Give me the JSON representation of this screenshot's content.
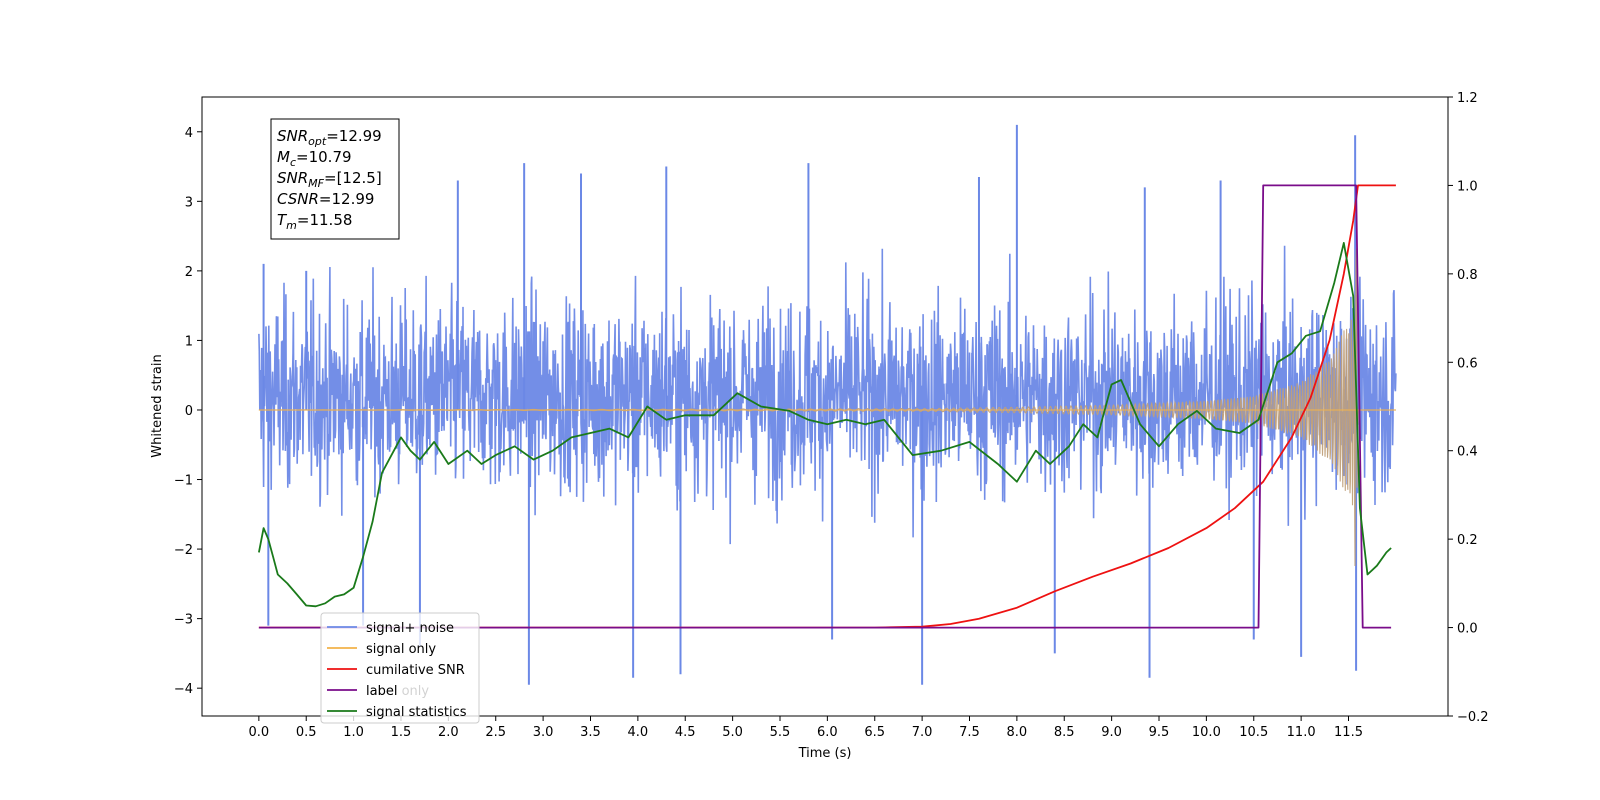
{
  "chart_data": {
    "type": "line",
    "xlabel": "Time (s)",
    "ylabel": "Whitened strain",
    "xlim": [
      -0.6,
      12.55
    ],
    "ylim": [
      -4.4,
      4.5
    ],
    "y2lim": [
      -0.2,
      1.2
    ],
    "xticks": [
      0.0,
      0.5,
      1.0,
      1.5,
      2.0,
      2.5,
      3.0,
      3.5,
      4.0,
      4.5,
      5.0,
      5.5,
      6.0,
      6.5,
      7.0,
      7.5,
      8.0,
      8.5,
      9.0,
      9.5,
      10.0,
      10.5,
      11.0,
      11.5
    ],
    "xtick_labels": [
      "0.0",
      "0.5",
      "1.0",
      "1.5",
      "2.0",
      "2.5",
      "3.0",
      "3.5",
      "4.0",
      "4.5",
      "5.0",
      "5.5",
      "6.0",
      "6.5",
      "7.0",
      "7.5",
      "8.0",
      "8.5",
      "9.0",
      "9.5",
      "10.0",
      "10.5",
      "11.0",
      "11.5"
    ],
    "yticks": [
      -4,
      -3,
      -2,
      -1,
      0,
      1,
      2,
      3,
      4
    ],
    "ytick_labels": [
      "−4",
      "−3",
      "−2",
      "−1",
      "0",
      "1",
      "2",
      "3",
      "4"
    ],
    "y2ticks": [
      -0.2,
      0.0,
      0.2,
      0.4,
      0.6,
      0.8,
      1.0,
      1.2
    ],
    "y2tick_labels": [
      "−0.2",
      "0.0",
      "0.2",
      "0.4",
      "0.6",
      "0.8",
      "1.0",
      "1.2"
    ],
    "grid": false,
    "legend_placement": "lower-left",
    "colors": {
      "signal_noise": "#6b88e6",
      "signal_only": "#f2b34a",
      "signal_only_fill": "#c0a07a",
      "cumulative_snr": "#ee1111",
      "label": "#7a0c8a",
      "signal_statistics": "#1a7a1a"
    },
    "series": [
      {
        "name": "signal+ noise",
        "axis": "left",
        "kind": "noise-band",
        "x_range": [
          0.0,
          12.0
        ],
        "typical_envelope": [
          -2.0,
          2.7
        ],
        "spikes": [
          {
            "x": 0.05,
            "y": 2.1
          },
          {
            "x": 0.1,
            "y": -3.1
          },
          {
            "x": 0.5,
            "y": 2.0
          },
          {
            "x": 1.1,
            "y": -3.1
          },
          {
            "x": 1.7,
            "y": -3.4
          },
          {
            "x": 2.1,
            "y": 3.3
          },
          {
            "x": 2.8,
            "y": 3.55
          },
          {
            "x": 2.85,
            "y": -3.95
          },
          {
            "x": 3.4,
            "y": 3.4
          },
          {
            "x": 3.95,
            "y": -3.85
          },
          {
            "x": 4.3,
            "y": 3.5
          },
          {
            "x": 4.45,
            "y": -3.8
          },
          {
            "x": 5.8,
            "y": 3.55
          },
          {
            "x": 6.05,
            "y": -3.3
          },
          {
            "x": 7.0,
            "y": -3.95
          },
          {
            "x": 7.6,
            "y": 3.35
          },
          {
            "x": 8.0,
            "y": 4.1
          },
          {
            "x": 8.4,
            "y": -3.5
          },
          {
            "x": 9.35,
            "y": 3.2
          },
          {
            "x": 9.4,
            "y": -3.85
          },
          {
            "x": 10.15,
            "y": 3.3
          },
          {
            "x": 10.5,
            "y": -3.3
          },
          {
            "x": 11.0,
            "y": -3.55
          },
          {
            "x": 11.57,
            "y": 3.95
          },
          {
            "x": 11.58,
            "y": -3.75
          }
        ]
      },
      {
        "name": "signal only",
        "axis": "left",
        "kind": "chirp",
        "x_range": [
          0.0,
          11.6
        ],
        "amplitude_points": [
          {
            "x": 0.0,
            "a": 0.0
          },
          {
            "x": 7.0,
            "a": 0.02
          },
          {
            "x": 8.0,
            "a": 0.04
          },
          {
            "x": 9.0,
            "a": 0.07
          },
          {
            "x": 10.0,
            "a": 0.13
          },
          {
            "x": 10.5,
            "a": 0.2
          },
          {
            "x": 11.0,
            "a": 0.4
          },
          {
            "x": 11.3,
            "a": 0.75
          },
          {
            "x": 11.55,
            "a": 1.4
          },
          {
            "x": 11.58,
            "a": 2.85
          },
          {
            "x": 11.6,
            "a": 0.0
          },
          {
            "x": 12.0,
            "a": 0.0
          }
        ]
      },
      {
        "name": "cumilative SNR",
        "axis": "right",
        "points": [
          [
            0.0,
            0.0
          ],
          [
            6.5,
            0.0
          ],
          [
            7.0,
            0.002
          ],
          [
            7.3,
            0.008
          ],
          [
            7.6,
            0.02
          ],
          [
            8.0,
            0.045
          ],
          [
            8.4,
            0.082
          ],
          [
            8.8,
            0.115
          ],
          [
            9.2,
            0.145
          ],
          [
            9.6,
            0.18
          ],
          [
            10.0,
            0.225
          ],
          [
            10.3,
            0.27
          ],
          [
            10.6,
            0.33
          ],
          [
            10.9,
            0.43
          ],
          [
            11.1,
            0.52
          ],
          [
            11.3,
            0.65
          ],
          [
            11.45,
            0.8
          ],
          [
            11.55,
            0.92
          ],
          [
            11.6,
            1.0
          ],
          [
            12.0,
            1.0
          ]
        ]
      },
      {
        "name": "label",
        "axis": "right",
        "points": [
          [
            0.0,
            0.0
          ],
          [
            10.55,
            0.0
          ],
          [
            10.6,
            1.0
          ],
          [
            11.58,
            1.0
          ],
          [
            11.65,
            0.0
          ],
          [
            11.95,
            0.0
          ]
        ]
      },
      {
        "name": "signal statistics",
        "axis": "right",
        "points": [
          [
            0.0,
            0.17
          ],
          [
            0.05,
            0.225
          ],
          [
            0.1,
            0.2
          ],
          [
            0.15,
            0.16
          ],
          [
            0.2,
            0.12
          ],
          [
            0.3,
            0.1
          ],
          [
            0.4,
            0.075
          ],
          [
            0.5,
            0.05
          ],
          [
            0.6,
            0.048
          ],
          [
            0.7,
            0.055
          ],
          [
            0.8,
            0.07
          ],
          [
            0.9,
            0.075
          ],
          [
            1.0,
            0.09
          ],
          [
            1.1,
            0.16
          ],
          [
            1.2,
            0.24
          ],
          [
            1.3,
            0.35
          ],
          [
            1.4,
            0.39
          ],
          [
            1.5,
            0.43
          ],
          [
            1.6,
            0.4
          ],
          [
            1.7,
            0.38
          ],
          [
            1.85,
            0.42
          ],
          [
            2.0,
            0.37
          ],
          [
            2.2,
            0.4
          ],
          [
            2.35,
            0.37
          ],
          [
            2.5,
            0.39
          ],
          [
            2.7,
            0.41
          ],
          [
            2.9,
            0.38
          ],
          [
            3.1,
            0.4
          ],
          [
            3.3,
            0.43
          ],
          [
            3.5,
            0.44
          ],
          [
            3.7,
            0.45
          ],
          [
            3.9,
            0.43
          ],
          [
            4.1,
            0.5
          ],
          [
            4.3,
            0.47
          ],
          [
            4.5,
            0.48
          ],
          [
            4.8,
            0.48
          ],
          [
            5.05,
            0.53
          ],
          [
            5.3,
            0.5
          ],
          [
            5.6,
            0.49
          ],
          [
            5.8,
            0.47
          ],
          [
            6.0,
            0.46
          ],
          [
            6.2,
            0.47
          ],
          [
            6.4,
            0.46
          ],
          [
            6.6,
            0.47
          ],
          [
            6.9,
            0.39
          ],
          [
            7.2,
            0.4
          ],
          [
            7.5,
            0.42
          ],
          [
            7.8,
            0.37
          ],
          [
            8.0,
            0.33
          ],
          [
            8.2,
            0.4
          ],
          [
            8.35,
            0.37
          ],
          [
            8.55,
            0.41
          ],
          [
            8.7,
            0.46
          ],
          [
            8.85,
            0.43
          ],
          [
            9.0,
            0.55
          ],
          [
            9.1,
            0.56
          ],
          [
            9.3,
            0.46
          ],
          [
            9.5,
            0.41
          ],
          [
            9.7,
            0.46
          ],
          [
            9.9,
            0.49
          ],
          [
            10.1,
            0.45
          ],
          [
            10.35,
            0.44
          ],
          [
            10.55,
            0.47
          ],
          [
            10.75,
            0.6
          ],
          [
            10.9,
            0.62
          ],
          [
            11.05,
            0.66
          ],
          [
            11.2,
            0.67
          ],
          [
            11.35,
            0.78
          ],
          [
            11.45,
            0.87
          ],
          [
            11.55,
            0.75
          ],
          [
            11.62,
            0.27
          ],
          [
            11.7,
            0.12
          ],
          [
            11.8,
            0.14
          ],
          [
            11.9,
            0.17
          ],
          [
            11.95,
            0.18
          ]
        ]
      }
    ],
    "legend": [
      "signal+ noise",
      "signal only",
      "cumilative SNR",
      "label",
      "signal statistics"
    ],
    "legend_overlapped_text": "label only",
    "info_box": [
      {
        "base": "SNR",
        "sub": "opt",
        "value": "=12.99"
      },
      {
        "base": "M",
        "sub": "c",
        "value": "=10.79"
      },
      {
        "base": "SNR",
        "sub": "MF",
        "value": "=[12.5]"
      },
      {
        "base": "CSNR",
        "sub": "",
        "value": "=12.99"
      },
      {
        "base": "T",
        "sub": "m",
        "value": "=11.58"
      }
    ]
  }
}
